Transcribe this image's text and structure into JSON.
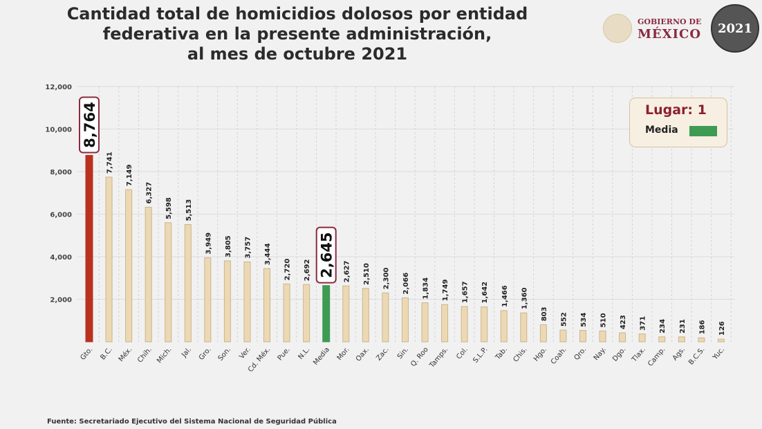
{
  "header": {
    "title_lines": [
      "Cantidad total de homicidios dolosos por entidad",
      "federativa en la presente administración,",
      "al mes de octubre 2021"
    ],
    "logo_text_line1": "GOBIERNO DE",
    "logo_text_line2": "MÉXICO",
    "badge_text": "2021"
  },
  "legend": {
    "rank_label": "Lugar: 1",
    "media_label": "Media",
    "media_color": "#3f9a53"
  },
  "footer": {
    "source": "Fuente: Secretariado Ejecutivo del Sistema Nacional de Seguridad Pública"
  },
  "chart_data": {
    "type": "bar",
    "title": "Cantidad total de homicidios dolosos por entidad federativa en la presente administración, al mes de octubre 2021",
    "categories": [
      "Gto.",
      "B.C.",
      "Méx.",
      "Chih.",
      "Mich.",
      "Jal.",
      "Gro.",
      "Son.",
      "Ver.",
      "Cd. Méx.",
      "Pue.",
      "N.L.",
      "Media",
      "Mor.",
      "Oax.",
      "Zac.",
      "Sin.",
      "Q. Roo",
      "Tamps.",
      "Col.",
      "S.L.P.",
      "Tab.",
      "Chis.",
      "Hgo.",
      "Coah.",
      "Qro.",
      "Nay.",
      "Dgo.",
      "Tlax.",
      "Camp.",
      "Ags.",
      "B.C.S.",
      "Yuc."
    ],
    "values": [
      8764,
      7741,
      7149,
      6327,
      5598,
      5513,
      3949,
      3805,
      3757,
      3444,
      2720,
      2692,
      2645,
      2627,
      2510,
      2300,
      2066,
      1834,
      1749,
      1657,
      1642,
      1466,
      1360,
      803,
      552,
      534,
      510,
      423,
      371,
      234,
      231,
      186,
      126
    ],
    "value_labels": [
      "8,764",
      "7,741",
      "7,149",
      "6,327",
      "5,598",
      "5,513",
      "3,949",
      "3,805",
      "3,757",
      "3,444",
      "2,720",
      "2,692",
      "2,645",
      "2,627",
      "2,510",
      "2,300",
      "2,066",
      "1,834",
      "1,749",
      "1,657",
      "1,642",
      "1,466",
      "1,360",
      "803",
      "552",
      "534",
      "510",
      "423",
      "371",
      "234",
      "231",
      "186",
      "126"
    ],
    "highlighted": {
      "Gto.": "#b8321f",
      "Media": "#3f9a53"
    },
    "default_color": "#ecd9b4",
    "ylim": [
      0,
      12000
    ],
    "yticks": [
      0,
      2000,
      4000,
      6000,
      8000,
      10000,
      12000
    ],
    "ytick_labels": [
      "",
      "2,000",
      "4,000",
      "6,000",
      "8,000",
      "10,000",
      "12,000"
    ],
    "grid": true,
    "legend_position": "top-right"
  }
}
